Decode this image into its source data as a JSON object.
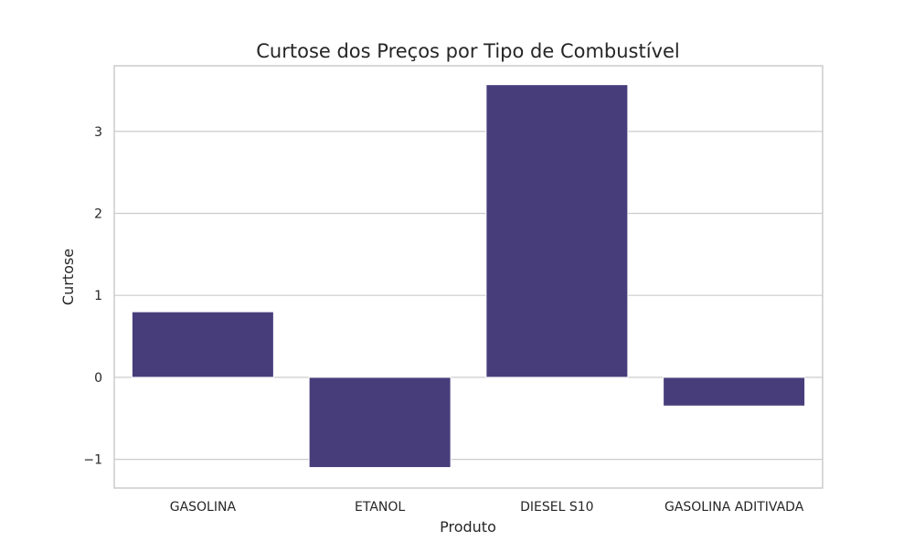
{
  "chart_data": {
    "type": "bar",
    "title": "Curtose dos Preços por Tipo de Combustível",
    "xlabel": "Produto",
    "ylabel": "Curtose",
    "categories": [
      "GASOLINA",
      "ETANOL",
      "DIESEL S10",
      "GASOLINA ADITIVADA"
    ],
    "values": [
      0.8,
      -1.1,
      3.57,
      -0.35
    ],
    "ylim": [
      -1.35,
      3.8
    ],
    "yticks": [
      -1,
      0,
      1,
      2,
      3
    ],
    "ytick_labels": [
      "−1",
      "0",
      "1",
      "2",
      "3"
    ],
    "grid": "horizontal",
    "bar_color": "#483d7b",
    "legend": "none"
  }
}
